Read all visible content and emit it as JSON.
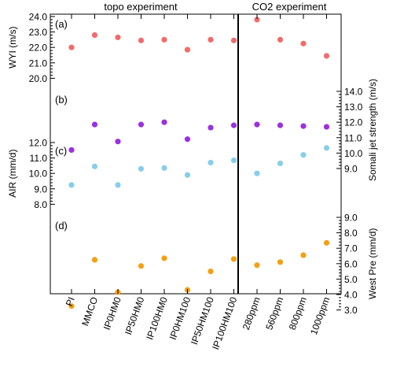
{
  "chart_data": {
    "type": "scatter",
    "headers": {
      "left": "topo experiment",
      "right": "CO2 experiment"
    },
    "categories": [
      "PI",
      "MMCO",
      "IP0HM0",
      "IP50HM0",
      "IP100HM0",
      "IP0HM100",
      "IP50HM100",
      "IP100HM100",
      "280ppm",
      "560ppm",
      "800ppm",
      "1000ppm"
    ],
    "colors": {
      "a": "#f26b6b",
      "b": "#9b30e0",
      "c": "#87ceeb",
      "d": "#f5a011"
    },
    "panels": [
      {
        "id": "a",
        "label": "(a)",
        "axis_label": "WYI (m/s)",
        "axis_side": "left",
        "ticks": [
          20.0,
          21.0,
          22.0,
          23.0,
          24.0
        ],
        "tick_labels": [
          "20.0",
          "21.0",
          "22.0",
          "23.0",
          "24.0"
        ],
        "values": [
          22.0,
          22.8,
          22.65,
          22.45,
          22.5,
          21.85,
          22.5,
          22.45,
          23.8,
          22.5,
          22.25,
          21.45
        ]
      },
      {
        "id": "b",
        "label": "(b)",
        "axis_label": "Somali jet strength (m/s)",
        "axis_side": "right",
        "ticks": [
          9.0,
          10.0,
          11.0,
          12.0,
          13.0,
          14.0
        ],
        "tick_labels": [
          "9.0",
          "10.0",
          "11.0",
          "12.0",
          "13.0",
          "14.0"
        ],
        "values": [
          10.2,
          11.85,
          10.75,
          11.85,
          12.0,
          10.9,
          11.65,
          11.8,
          11.85,
          11.8,
          11.75,
          11.7
        ]
      },
      {
        "id": "c",
        "label": "(c)",
        "axis_label": "AIR (mm/d)",
        "axis_side": "left",
        "ticks": [
          8.0,
          9.0,
          10.0,
          11.0,
          12.0
        ],
        "tick_labels": [
          "8.0",
          "9.0",
          "10.0",
          "11.0",
          "12.0"
        ],
        "values": [
          9.25,
          10.45,
          9.25,
          10.3,
          10.35,
          9.9,
          10.7,
          10.85,
          10.0,
          10.65,
          11.2,
          11.65
        ]
      },
      {
        "id": "d",
        "label": "(d)",
        "axis_label": "West Pre (mm/d)",
        "axis_side": "right",
        "ticks": [
          3.0,
          4.0,
          5.0,
          6.0,
          7.0,
          8.0,
          9.0
        ],
        "tick_labels": [
          "3.0",
          "4.0",
          "5.0",
          "6.0",
          "7.0",
          "8.0",
          "9.0"
        ],
        "values": [
          3.25,
          6.25,
          4.15,
          5.85,
          6.35,
          4.3,
          5.5,
          6.3,
          5.9,
          6.1,
          6.55,
          7.35
        ]
      }
    ]
  }
}
